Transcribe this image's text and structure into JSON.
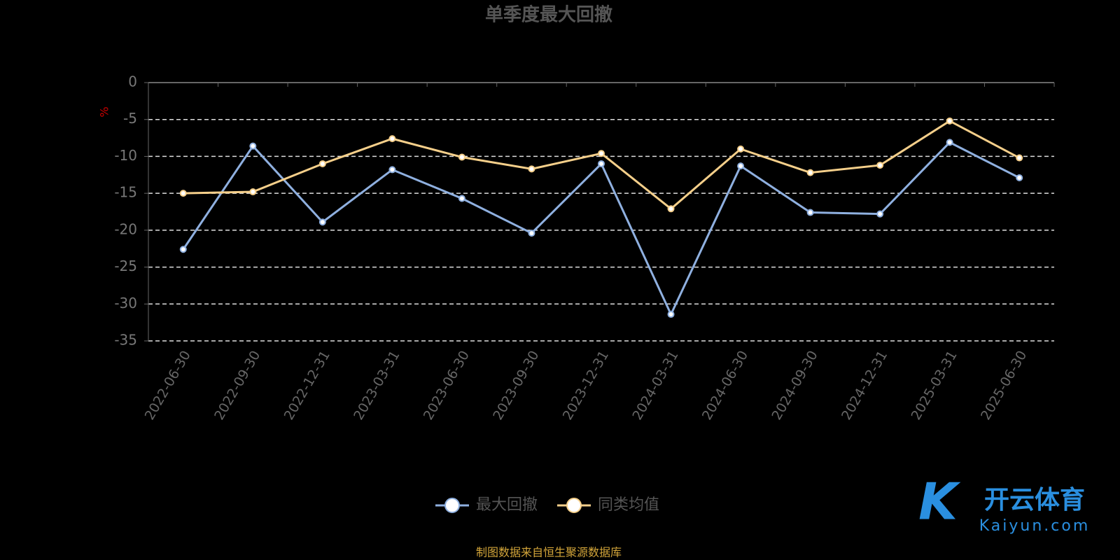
{
  "chart_data": {
    "type": "line",
    "title": "单季度最大回撤",
    "y_label": "%",
    "categories": [
      "2022-06-30",
      "2022-09-30",
      "2022-12-31",
      "2023-03-31",
      "2023-06-30",
      "2023-09-30",
      "2023-12-31",
      "2024-03-31",
      "2024-06-30",
      "2024-09-30",
      "2024-12-31",
      "2025-03-31",
      "2025-06-30"
    ],
    "series": [
      {
        "name": "最大回撤",
        "color": "#8fb0e0",
        "values": [
          -22.6,
          -8.6,
          -18.9,
          -11.8,
          -15.7,
          -20.4,
          -11.0,
          -31.4,
          -11.3,
          -17.6,
          -17.8,
          -8.1,
          -12.9
        ]
      },
      {
        "name": "同类均值",
        "color": "#f5cf8a",
        "values": [
          -15.0,
          -14.8,
          -11.0,
          -7.6,
          -10.1,
          -11.7,
          -9.6,
          -17.1,
          -9.0,
          -12.2,
          -11.2,
          -5.2,
          -10.2
        ]
      }
    ],
    "ylim": [
      -35,
      0
    ],
    "yticks": [
      0,
      -5,
      -10,
      -15,
      -20,
      -25,
      -30,
      -35
    ],
    "grid": true,
    "source": "制图数据来自恒生聚源数据库",
    "watermark": {
      "brand": "开云体育",
      "site": "Kaiyun.com"
    }
  }
}
